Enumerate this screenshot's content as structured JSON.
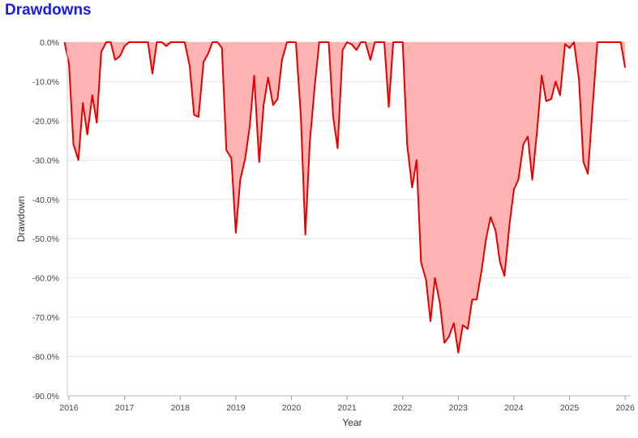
{
  "chart_data": {
    "type": "area",
    "title": "Drawdowns",
    "xlabel": "Year",
    "ylabel": "Drawdown",
    "ylim": [
      -90,
      0
    ],
    "xlim": [
      2015.97,
      2026.1
    ],
    "x_ticks": [
      {
        "value": 2016,
        "label": "2016"
      },
      {
        "value": 2017,
        "label": "2017"
      },
      {
        "value": 2018,
        "label": "2018"
      },
      {
        "value": 2019,
        "label": "2019"
      },
      {
        "value": 2020,
        "label": "2020"
      },
      {
        "value": 2021,
        "label": "2021"
      },
      {
        "value": 2022,
        "label": "2022"
      },
      {
        "value": 2023,
        "label": "2023"
      },
      {
        "value": 2024,
        "label": "2024"
      },
      {
        "value": 2025,
        "label": "2025"
      },
      {
        "value": 2026,
        "label": "2026"
      }
    ],
    "y_ticks": [
      {
        "value": 0,
        "label": "0.0%"
      },
      {
        "value": -10,
        "label": "-10.0%"
      },
      {
        "value": -20,
        "label": "-20.0%"
      },
      {
        "value": -30,
        "label": "-30.0%"
      },
      {
        "value": -40,
        "label": "-40.0%"
      },
      {
        "value": -50,
        "label": "-50.0%"
      },
      {
        "value": -60,
        "label": "-60.0%"
      },
      {
        "value": -70,
        "label": "-70.0%"
      },
      {
        "value": -80,
        "label": "-80.0%"
      },
      {
        "value": -90,
        "label": "-90.0%"
      }
    ],
    "grid": true,
    "line_color": "#e60000",
    "fill_color": "#ffb3b3",
    "series": [
      {
        "points": [
          [
            2015.92,
            0
          ],
          [
            2016.0,
            -5.5
          ],
          [
            2016.08,
            -26
          ],
          [
            2016.17,
            -30
          ],
          [
            2016.25,
            -15.5
          ],
          [
            2016.33,
            -23.5
          ],
          [
            2016.42,
            -13.5
          ],
          [
            2016.5,
            -20.5
          ],
          [
            2016.58,
            -2.5
          ],
          [
            2016.67,
            0
          ],
          [
            2016.75,
            0
          ],
          [
            2016.83,
            -4.5
          ],
          [
            2016.92,
            -3.5
          ],
          [
            2017.0,
            -1
          ],
          [
            2017.08,
            0
          ],
          [
            2017.17,
            0
          ],
          [
            2017.25,
            0
          ],
          [
            2017.33,
            0
          ],
          [
            2017.42,
            0
          ],
          [
            2017.5,
            -8
          ],
          [
            2017.58,
            0
          ],
          [
            2017.67,
            0
          ],
          [
            2017.75,
            -1
          ],
          [
            2017.83,
            0
          ],
          [
            2017.92,
            0
          ],
          [
            2018.0,
            0
          ],
          [
            2018.08,
            0
          ],
          [
            2018.17,
            -6
          ],
          [
            2018.25,
            -18.5
          ],
          [
            2018.33,
            -19
          ],
          [
            2018.42,
            -5
          ],
          [
            2018.5,
            -3
          ],
          [
            2018.58,
            0
          ],
          [
            2018.67,
            0
          ],
          [
            2018.75,
            -1.5
          ],
          [
            2018.83,
            -27.5
          ],
          [
            2018.92,
            -29.5
          ],
          [
            2019.0,
            -48.5
          ],
          [
            2019.08,
            -35
          ],
          [
            2019.17,
            -29.5
          ],
          [
            2019.25,
            -21.5
          ],
          [
            2019.33,
            -8.5
          ],
          [
            2019.42,
            -30.5
          ],
          [
            2019.5,
            -16
          ],
          [
            2019.58,
            -9
          ],
          [
            2019.67,
            -16
          ],
          [
            2019.75,
            -14.5
          ],
          [
            2019.83,
            -4.5
          ],
          [
            2019.92,
            0
          ],
          [
            2020.0,
            0
          ],
          [
            2020.08,
            0
          ],
          [
            2020.17,
            -19
          ],
          [
            2020.25,
            -49
          ],
          [
            2020.33,
            -25.5
          ],
          [
            2020.42,
            -11
          ],
          [
            2020.5,
            0
          ],
          [
            2020.58,
            0
          ],
          [
            2020.67,
            0
          ],
          [
            2020.75,
            -19
          ],
          [
            2020.83,
            -27
          ],
          [
            2020.92,
            -2
          ],
          [
            2021.0,
            0
          ],
          [
            2021.08,
            -0.5
          ],
          [
            2021.17,
            -2
          ],
          [
            2021.25,
            0
          ],
          [
            2021.33,
            0
          ],
          [
            2021.42,
            -4.5
          ],
          [
            2021.5,
            0
          ],
          [
            2021.58,
            0
          ],
          [
            2021.67,
            0
          ],
          [
            2021.75,
            -16.5
          ],
          [
            2021.83,
            0
          ],
          [
            2021.92,
            0
          ],
          [
            2022.0,
            0
          ],
          [
            2022.08,
            -26
          ],
          [
            2022.17,
            -37
          ],
          [
            2022.25,
            -30
          ],
          [
            2022.33,
            -56
          ],
          [
            2022.42,
            -60.5
          ],
          [
            2022.5,
            -71
          ],
          [
            2022.58,
            -60
          ],
          [
            2022.67,
            -66.5
          ],
          [
            2022.75,
            -76.5
          ],
          [
            2022.83,
            -75
          ],
          [
            2022.92,
            -71.5
          ],
          [
            2023.0,
            -79
          ],
          [
            2023.08,
            -72
          ],
          [
            2023.17,
            -73
          ],
          [
            2023.25,
            -65.5
          ],
          [
            2023.33,
            -65.5
          ],
          [
            2023.42,
            -58
          ],
          [
            2023.5,
            -50
          ],
          [
            2023.58,
            -44.5
          ],
          [
            2023.67,
            -48
          ],
          [
            2023.75,
            -56
          ],
          [
            2023.83,
            -59.5
          ],
          [
            2023.92,
            -46.5
          ],
          [
            2024.0,
            -37.5
          ],
          [
            2024.08,
            -35
          ],
          [
            2024.17,
            -26
          ],
          [
            2024.25,
            -24
          ],
          [
            2024.33,
            -35
          ],
          [
            2024.42,
            -22
          ],
          [
            2024.5,
            -8.5
          ],
          [
            2024.58,
            -15
          ],
          [
            2024.67,
            -14.5
          ],
          [
            2024.75,
            -10
          ],
          [
            2024.83,
            -13.5
          ],
          [
            2024.92,
            -0.5
          ],
          [
            2025.0,
            -1.5
          ],
          [
            2025.08,
            0
          ],
          [
            2025.17,
            -9.5
          ],
          [
            2025.25,
            -30.5
          ],
          [
            2025.33,
            -33.5
          ],
          [
            2025.42,
            -15.5
          ],
          [
            2025.5,
            0
          ],
          [
            2025.58,
            0
          ],
          [
            2025.67,
            0
          ],
          [
            2025.75,
            0
          ],
          [
            2025.83,
            0
          ],
          [
            2025.92,
            0
          ],
          [
            2026.0,
            -6.5
          ]
        ]
      }
    ]
  }
}
